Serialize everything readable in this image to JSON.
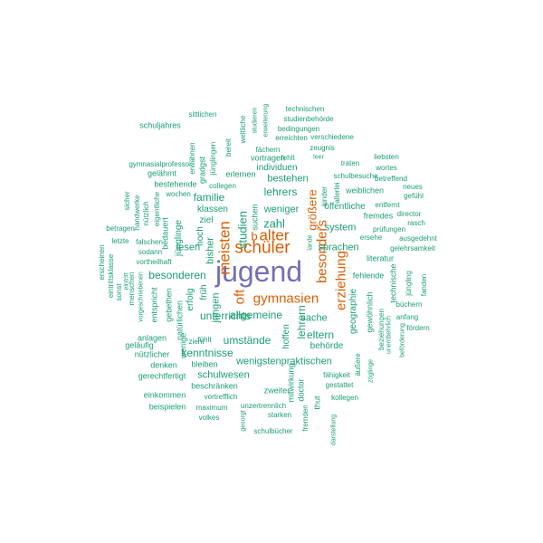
{
  "colors": {
    "primary": "#7570b3",
    "large": "#d95f02",
    "small": "#1b9e77"
  },
  "words": [
    {
      "text": "jugend",
      "tier": "primary"
    },
    {
      "text": "schüler",
      "tier": "large"
    },
    {
      "text": "meisten",
      "tier": "large"
    },
    {
      "text": "gymnasien",
      "tier": "large"
    },
    {
      "text": "erziehung",
      "tier": "large"
    },
    {
      "text": "besonders",
      "tier": "large"
    },
    {
      "text": "alter",
      "tier": "large"
    },
    {
      "text": "oft",
      "tier": "large"
    },
    {
      "text": "größere",
      "tier": "large"
    },
    {
      "text": "b",
      "tier": "large"
    },
    {
      "text": "studien",
      "tier": "small"
    },
    {
      "text": "zahl",
      "tier": "small"
    },
    {
      "text": "weniger",
      "tier": "small"
    },
    {
      "text": "familie",
      "tier": "small"
    },
    {
      "text": "lehrers",
      "tier": "small"
    },
    {
      "text": "besonderen",
      "tier": "small"
    },
    {
      "text": "unterrichts",
      "tier": "small"
    },
    {
      "text": "allgemeine",
      "tier": "small"
    },
    {
      "text": "umstände",
      "tier": "small"
    },
    {
      "text": "kenntnisse",
      "tier": "small"
    },
    {
      "text": "schulwesen",
      "tier": "small"
    },
    {
      "text": "wenigstenpraktischen",
      "tier": "small"
    },
    {
      "text": "eltern",
      "tier": "small"
    },
    {
      "text": "behörde",
      "tier": "small"
    },
    {
      "text": "sache",
      "tier": "small"
    },
    {
      "text": "lehrern",
      "tier": "small"
    },
    {
      "text": "hoffen",
      "tier": "small"
    },
    {
      "text": "sprachen",
      "tier": "small"
    },
    {
      "text": "system",
      "tier": "small"
    },
    {
      "text": "geographie",
      "tier": "small"
    },
    {
      "text": "gewöhnlich",
      "tier": "small"
    },
    {
      "text": "öffentliche",
      "tier": "small"
    },
    {
      "text": "bestehen",
      "tier": "small"
    },
    {
      "text": "individuen",
      "tier": "small"
    },
    {
      "text": "klassen",
      "tier": "small"
    },
    {
      "text": "jungen",
      "tier": "small"
    },
    {
      "text": "bisher",
      "tier": "small"
    },
    {
      "text": "lesen",
      "tier": "small"
    },
    {
      "text": "hoch",
      "tier": "small"
    },
    {
      "text": "früh",
      "tier": "small"
    },
    {
      "text": "erfolg",
      "tier": "small"
    },
    {
      "text": "jünglinge",
      "tier": "small"
    },
    {
      "text": "ziel",
      "tier": "small"
    },
    {
      "text": "suchen",
      "tier": "small"
    },
    {
      "text": "zweiter",
      "tier": "small"
    },
    {
      "text": "beschränken",
      "tier": "small"
    },
    {
      "text": "bleiben",
      "tier": "small"
    },
    {
      "text": "fühlt",
      "tier": "small"
    },
    {
      "text": "zieht",
      "tier": "small"
    },
    {
      "text": "wenige",
      "tier": "small"
    },
    {
      "text": "natürlichen",
      "tier": "small"
    },
    {
      "text": "gebethen",
      "tier": "small"
    },
    {
      "text": "entspricht",
      "tier": "small"
    },
    {
      "text": "anlagen",
      "tier": "small"
    },
    {
      "text": "geläufig",
      "tier": "small"
    },
    {
      "text": "nützlicher",
      "tier": "small"
    },
    {
      "text": "denken",
      "tier": "small"
    },
    {
      "text": "gerechtfertigt",
      "tier": "small"
    },
    {
      "text": "einkommen",
      "tier": "small"
    },
    {
      "text": "beispielen",
      "tier": "small"
    },
    {
      "text": "maximum",
      "tier": "small"
    },
    {
      "text": "volkes",
      "tier": "small"
    },
    {
      "text": "vortrefflich",
      "tier": "small"
    },
    {
      "text": "unzertrennlich",
      "tier": "small"
    },
    {
      "text": "starken",
      "tier": "small"
    },
    {
      "text": "schulbücher",
      "tier": "small"
    },
    {
      "text": "gesorgt",
      "tier": "small"
    },
    {
      "text": "mitwirkung",
      "tier": "small"
    },
    {
      "text": "doctor",
      "tier": "small"
    },
    {
      "text": "fremden",
      "tier": "small"
    },
    {
      "text": "thut",
      "tier": "small"
    },
    {
      "text": "darstellung",
      "tier": "small"
    },
    {
      "text": "kollegen",
      "tier": "small"
    },
    {
      "text": "gestattet",
      "tier": "small"
    },
    {
      "text": "fähigkeit",
      "tier": "small"
    },
    {
      "text": "äußere",
      "tier": "small"
    },
    {
      "text": "zöglinge",
      "tier": "small"
    },
    {
      "text": "beziehungen",
      "tier": "small"
    },
    {
      "text": "unentbehrlich",
      "tier": "small"
    },
    {
      "text": "beförderung",
      "tier": "small"
    },
    {
      "text": "fördern",
      "tier": "small"
    },
    {
      "text": "anfang",
      "tier": "small"
    },
    {
      "text": "büchern",
      "tier": "small"
    },
    {
      "text": "technische",
      "tier": "small"
    },
    {
      "text": "jüngling",
      "tier": "small"
    },
    {
      "text": "fanden",
      "tier": "small"
    },
    {
      "text": "fehlende",
      "tier": "small"
    },
    {
      "text": "literatur",
      "tier": "small"
    },
    {
      "text": "gelehrsamkeit",
      "tier": "small"
    },
    {
      "text": "ausgedehnt",
      "tier": "small"
    },
    {
      "text": "rasch",
      "tier": "small"
    },
    {
      "text": "director",
      "tier": "small"
    },
    {
      "text": "fremdes",
      "tier": "small"
    },
    {
      "text": "prüfungen",
      "tier": "small"
    },
    {
      "text": "ersehe",
      "tier": "small"
    },
    {
      "text": "entfernt",
      "tier": "small"
    },
    {
      "text": "gefühl",
      "tier": "small"
    },
    {
      "text": "neues",
      "tier": "small"
    },
    {
      "text": "weiblichen",
      "tier": "small"
    },
    {
      "text": "betreffend",
      "tier": "small"
    },
    {
      "text": "schulbesuche",
      "tier": "small"
    },
    {
      "text": "wortes",
      "tier": "small"
    },
    {
      "text": "traten",
      "tier": "small"
    },
    {
      "text": "liebsten",
      "tier": "small"
    },
    {
      "text": "allerlei",
      "tier": "small"
    },
    {
      "text": "kinder",
      "tier": "small"
    },
    {
      "text": "lande",
      "tier": "small"
    },
    {
      "text": "leer",
      "tier": "small"
    },
    {
      "text": "fehlt",
      "tier": "small"
    },
    {
      "text": "zeugnis",
      "tier": "small"
    },
    {
      "text": "verschiedene",
      "tier": "small"
    },
    {
      "text": "bedingungen",
      "tier": "small"
    },
    {
      "text": "studienbehörde",
      "tier": "small"
    },
    {
      "text": "technischen",
      "tier": "small"
    },
    {
      "text": "erreichten",
      "tier": "small"
    },
    {
      "text": "vortragen",
      "tier": "small"
    },
    {
      "text": "fächern",
      "tier": "small"
    },
    {
      "text": "erlernen",
      "tier": "small"
    },
    {
      "text": "collegen",
      "tier": "small"
    },
    {
      "text": "bereit",
      "tier": "small"
    },
    {
      "text": "jünglingen",
      "tier": "small"
    },
    {
      "text": "gradgst",
      "tier": "small"
    },
    {
      "text": "erwähnen",
      "tier": "small"
    },
    {
      "text": "weltliche",
      "tier": "small"
    },
    {
      "text": "studieren",
      "tier": "small"
    },
    {
      "text": "erweiterung",
      "tier": "small"
    },
    {
      "text": "sittlichen",
      "tier": "small"
    },
    {
      "text": "schuljahres",
      "tier": "small"
    },
    {
      "text": "gymnasialprofessor",
      "tier": "small"
    },
    {
      "text": "gelähmt",
      "tier": "small"
    },
    {
      "text": "bestehende",
      "tier": "small"
    },
    {
      "text": "wochen",
      "tier": "small"
    },
    {
      "text": "sicher",
      "tier": "small"
    },
    {
      "text": "handwerke",
      "tier": "small"
    },
    {
      "text": "nützlich",
      "tier": "small"
    },
    {
      "text": "eigentliche",
      "tier": "small"
    },
    {
      "text": "bedauert",
      "tier": "small"
    },
    {
      "text": "betragen",
      "tier": "small"
    },
    {
      "text": "falschen",
      "tier": "small"
    },
    {
      "text": "letzte",
      "tier": "small"
    },
    {
      "text": "sodann",
      "tier": "small"
    },
    {
      "text": "vortheilhaft",
      "tier": "small"
    },
    {
      "text": "menschen",
      "tier": "small"
    },
    {
      "text": "eintritt",
      "tier": "small"
    },
    {
      "text": "sonst",
      "tier": "small"
    },
    {
      "text": "erscheinen",
      "tier": "small"
    },
    {
      "text": "eintrittsklasse",
      "tier": "small"
    },
    {
      "text": "vorgeschriebenen",
      "tier": "small"
    },
    {
      "text": "vorbildung",
      "tier": "small"
    }
  ]
}
